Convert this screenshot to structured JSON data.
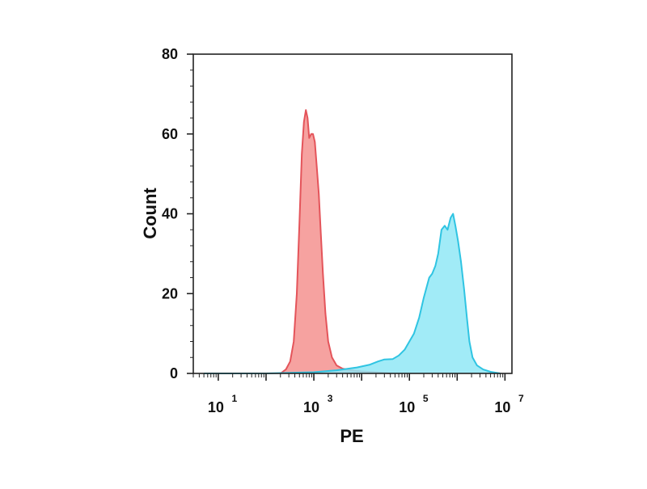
{
  "chart_data": {
    "type": "area",
    "xscale": "log10",
    "xlabel": "PE",
    "ylabel": "Count",
    "xlim": [
      3,
      14000000
    ],
    "ylim": [
      0,
      80
    ],
    "yticks": [
      {
        "value": 0,
        "label": "0"
      },
      {
        "value": 20,
        "label": "20"
      },
      {
        "value": 40,
        "label": "40"
      },
      {
        "value": 60,
        "label": "60"
      },
      {
        "value": 80,
        "label": "80"
      }
    ],
    "xticks": [
      {
        "value": 10,
        "base": "10",
        "exp": "1"
      },
      {
        "value": 1000,
        "base": "10",
        "exp": "3"
      },
      {
        "value": 100000,
        "base": "10",
        "exp": "5"
      },
      {
        "value": 10000000,
        "base": "10",
        "exp": "7"
      }
    ],
    "grid": false,
    "legend": "none",
    "series": [
      {
        "color_fill": "#f4928f",
        "color_line": "#e4545a",
        "points": [
          [
            200,
            0
          ],
          [
            260,
            1
          ],
          [
            320,
            3
          ],
          [
            380,
            8
          ],
          [
            440,
            20
          ],
          [
            500,
            38
          ],
          [
            560,
            55
          ],
          [
            620,
            63
          ],
          [
            680,
            66
          ],
          [
            740,
            64
          ],
          [
            800,
            59
          ],
          [
            880,
            60
          ],
          [
            960,
            60
          ],
          [
            1050,
            58
          ],
          [
            1150,
            52
          ],
          [
            1270,
            45
          ],
          [
            1400,
            35
          ],
          [
            1550,
            25
          ],
          [
            1750,
            15
          ],
          [
            2000,
            8
          ],
          [
            2400,
            4
          ],
          [
            3000,
            2
          ],
          [
            4000,
            1.2
          ],
          [
            6000,
            0.8
          ],
          [
            10000,
            0.5
          ],
          [
            20000,
            0.3
          ],
          [
            40000,
            0
          ]
        ]
      },
      {
        "color_fill": "#90e8f6",
        "color_line": "#2fc4e2",
        "points": [
          [
            5,
            0
          ],
          [
            100,
            0
          ],
          [
            1000,
            0.3
          ],
          [
            3000,
            0.8
          ],
          [
            8000,
            1.5
          ],
          [
            15000,
            2.2
          ],
          [
            22000,
            3
          ],
          [
            30000,
            3.5
          ],
          [
            45000,
            3.6
          ],
          [
            60000,
            4.5
          ],
          [
            80000,
            6
          ],
          [
            100000,
            8
          ],
          [
            125000,
            10
          ],
          [
            160000,
            14
          ],
          [
            200000,
            19
          ],
          [
            260000,
            24
          ],
          [
            300000,
            25
          ],
          [
            350000,
            27
          ],
          [
            400000,
            30
          ],
          [
            470000,
            36
          ],
          [
            550000,
            37
          ],
          [
            630000,
            36
          ],
          [
            730000,
            39
          ],
          [
            820000,
            40
          ],
          [
            920000,
            37
          ],
          [
            1050000,
            33
          ],
          [
            1200000,
            28
          ],
          [
            1400000,
            21
          ],
          [
            1600000,
            14
          ],
          [
            1800000,
            8
          ],
          [
            2100000,
            4
          ],
          [
            2600000,
            2
          ],
          [
            3500000,
            1
          ],
          [
            5000000,
            0.4
          ],
          [
            8000000,
            0
          ]
        ]
      }
    ]
  }
}
